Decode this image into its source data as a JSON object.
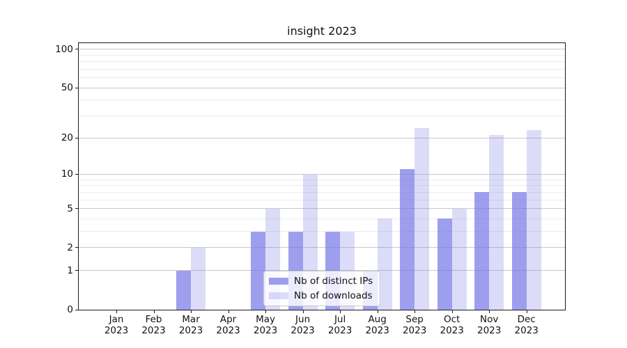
{
  "title": "insight 2023",
  "chart_data": {
    "type": "bar",
    "title": "insight 2023",
    "categories": [
      "Jan 2023",
      "Feb 2023",
      "Mar 2023",
      "Apr 2023",
      "May 2023",
      "Jun 2023",
      "Jul 2023",
      "Aug 2023",
      "Sep 2023",
      "Oct 2023",
      "Nov 2023",
      "Dec 2023"
    ],
    "categories_month": [
      "Jan",
      "Feb",
      "Mar",
      "Apr",
      "May",
      "Jun",
      "Jul",
      "Aug",
      "Sep",
      "Oct",
      "Nov",
      "Dec"
    ],
    "categories_year": "2023",
    "series": [
      {
        "name": "Nb of distinct IPs",
        "color": "rgba(117,117,232,0.70)",
        "values": [
          0,
          0,
          1,
          0,
          3,
          3,
          3,
          1,
          11,
          4,
          7,
          7
        ]
      },
      {
        "name": "Nb of downloads",
        "color": "rgba(117,117,232,0.25)",
        "values": [
          0,
          0,
          2,
          0,
          5,
          10,
          3,
          4,
          24,
          5,
          21,
          23
        ]
      }
    ],
    "yscale": "log1p",
    "ylim": [
      0,
      111
    ],
    "yticks": [
      0,
      1,
      2,
      5,
      10,
      20,
      50,
      100
    ],
    "yticks_minor": [
      3,
      4,
      6,
      7,
      8,
      9,
      30,
      40,
      60,
      70,
      80,
      90
    ],
    "grid": true,
    "legend_position": "lower-center-inside"
  },
  "colors": {
    "bar_base": "#7575e8",
    "major_grid": "#c9c9c9",
    "minor_grid": "#ececec",
    "spine": "#1a1a1a",
    "background": "#ffffff"
  }
}
